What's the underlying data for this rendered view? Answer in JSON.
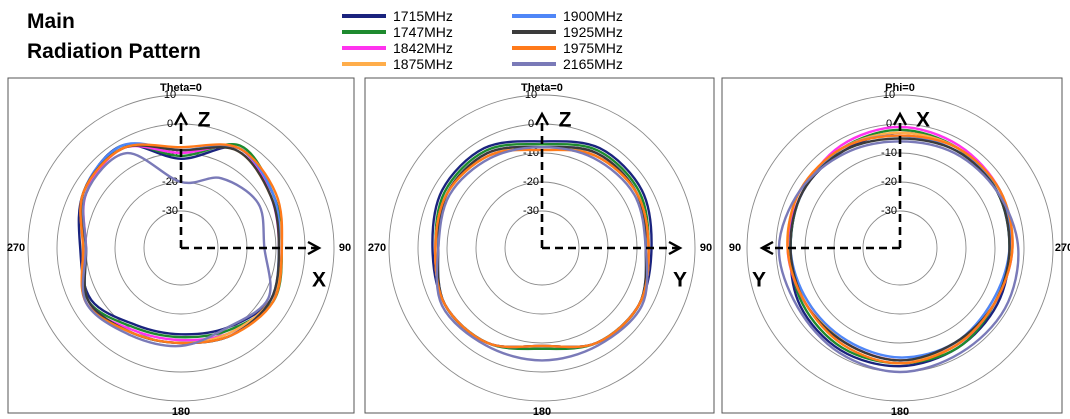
{
  "header": {
    "line1": "Main",
    "line2": "Radiation Pattern"
  },
  "legend": [
    {
      "name": "1715MHz",
      "color": "#1a237e"
    },
    {
      "name": "1747MHz",
      "color": "#1e8a2e"
    },
    {
      "name": "1842MHz",
      "color": "#ff33ee"
    },
    {
      "name": "1875MHz",
      "color": "#ffad4a"
    },
    {
      "name": "1900MHz",
      "color": "#4f86f7"
    },
    {
      "name": "1925MHz",
      "color": "#3b3b3b"
    },
    {
      "name": "1975MHz",
      "color": "#ff7a1a"
    },
    {
      "name": "2165MHz",
      "color": "#7a7ab8"
    }
  ],
  "chart_data": [
    {
      "type": "polar",
      "plane": "Theta=0",
      "angle_labels": {
        "top": "0",
        "right": "90",
        "bottom": "180",
        "left": "270"
      },
      "rlim": [
        -30,
        10
      ],
      "ring_labels": [
        "10",
        "0",
        "-10",
        "-20",
        "-30"
      ],
      "axes": {
        "up": "Z",
        "horizontal": "X",
        "horizontal_direction": "right"
      },
      "series": [
        {
          "name": "1715MHz",
          "theta": [
            0,
            30,
            60,
            90,
            120,
            150,
            180,
            210,
            240,
            270,
            300,
            330,
            360
          ],
          "r": [
            -12,
            -3,
            -6,
            -8,
            -7,
            -11,
            -13,
            -12,
            -7,
            -8,
            -4,
            -2,
            -12
          ]
        },
        {
          "name": "1747MHz",
          "theta": [
            0,
            30,
            60,
            90,
            120,
            150,
            180,
            210,
            240,
            270,
            300,
            330,
            360
          ],
          "r": [
            -11,
            -2,
            -6,
            -8,
            -6,
            -10,
            -12,
            -11,
            -6,
            -9,
            -5,
            -2,
            -11
          ]
        },
        {
          "name": "1842MHz",
          "theta": [
            0,
            30,
            60,
            90,
            120,
            150,
            180,
            210,
            240,
            270,
            300,
            330,
            360
          ],
          "r": [
            -10,
            -3,
            -7,
            -9,
            -7,
            -9,
            -11,
            -10,
            -5,
            -10,
            -5,
            -3,
            -10
          ]
        },
        {
          "name": "1875MHz",
          "theta": [
            0,
            30,
            60,
            90,
            120,
            150,
            180,
            210,
            240,
            270,
            300,
            330,
            360
          ],
          "r": [
            -9,
            -4,
            -7,
            -8,
            -7,
            -9,
            -10,
            -9,
            -5,
            -9,
            -4,
            -3,
            -9
          ]
        },
        {
          "name": "1900MHz",
          "theta": [
            0,
            30,
            60,
            90,
            120,
            150,
            180,
            210,
            240,
            270,
            300,
            330,
            360
          ],
          "r": [
            -9,
            -3,
            -6,
            -9,
            -7,
            -8,
            -10,
            -9,
            -6,
            -10,
            -4,
            -2,
            -9
          ]
        },
        {
          "name": "1925MHz",
          "theta": [
            0,
            30,
            60,
            90,
            120,
            150,
            180,
            210,
            240,
            270,
            300,
            330,
            360
          ],
          "r": [
            -9,
            -4,
            -7,
            -9,
            -7,
            -8,
            -10,
            -9,
            -6,
            -10,
            -4,
            -3,
            -9
          ]
        },
        {
          "name": "1975MHz",
          "theta": [
            0,
            30,
            60,
            90,
            120,
            150,
            180,
            210,
            240,
            270,
            300,
            330,
            360
          ],
          "r": [
            -8,
            -3,
            -5,
            -8,
            -6,
            -8,
            -10,
            -9,
            -5,
            -9,
            -4,
            -3,
            -8
          ]
        },
        {
          "name": "2165MHz",
          "theta": [
            0,
            30,
            60,
            90,
            120,
            150,
            180,
            210,
            240,
            270,
            300,
            330,
            360
          ],
          "r": [
            -20,
            -15,
            -12,
            -14,
            -8,
            -11,
            -9,
            -8,
            -5,
            -10,
            -5,
            -5,
            -20
          ]
        }
      ]
    },
    {
      "type": "polar",
      "plane": "Theta=0",
      "angle_labels": {
        "top": "0",
        "right": "90",
        "bottom": "180",
        "left": "270"
      },
      "rlim": [
        -30,
        10
      ],
      "ring_labels": [
        "10",
        "0",
        "-10",
        "-20",
        "-30"
      ],
      "axes": {
        "up": "Z",
        "horizontal": "Y",
        "horizontal_direction": "right"
      },
      "series": [
        {
          "name": "1715MHz",
          "theta": [
            0,
            30,
            60,
            90,
            120,
            150,
            180,
            210,
            240,
            270,
            300,
            330,
            360
          ],
          "r": [
            -6,
            -3,
            -3,
            -5,
            -4,
            -5,
            -9,
            -5,
            -4,
            -5,
            -3,
            -3,
            -6
          ]
        },
        {
          "name": "1747MHz",
          "theta": [
            0,
            30,
            60,
            90,
            120,
            150,
            180,
            210,
            240,
            270,
            300,
            330,
            360
          ],
          "r": [
            -7,
            -4,
            -4,
            -6,
            -4,
            -5,
            -8,
            -5,
            -4,
            -6,
            -4,
            -4,
            -7
          ]
        },
        {
          "name": "1842MHz",
          "theta": [
            0,
            30,
            60,
            90,
            120,
            150,
            180,
            210,
            240,
            270,
            300,
            330,
            360
          ],
          "r": [
            -8,
            -5,
            -5,
            -6,
            -4,
            -5,
            -9,
            -5,
            -4,
            -6,
            -5,
            -5,
            -8
          ]
        },
        {
          "name": "1875MHz",
          "theta": [
            0,
            30,
            60,
            90,
            120,
            150,
            180,
            210,
            240,
            270,
            300,
            330,
            360
          ],
          "r": [
            -8,
            -6,
            -5,
            -6,
            -4,
            -5,
            -9,
            -5,
            -4,
            -6,
            -5,
            -6,
            -8
          ]
        },
        {
          "name": "1900MHz",
          "theta": [
            0,
            30,
            60,
            90,
            120,
            150,
            180,
            210,
            240,
            270,
            300,
            330,
            360
          ],
          "r": [
            -8,
            -5,
            -5,
            -7,
            -4,
            -5,
            -9,
            -5,
            -4,
            -7,
            -5,
            -5,
            -8
          ]
        },
        {
          "name": "1925MHz",
          "theta": [
            0,
            30,
            60,
            90,
            120,
            150,
            180,
            210,
            240,
            270,
            300,
            330,
            360
          ],
          "r": [
            -8,
            -5,
            -5,
            -7,
            -4,
            -5,
            -9,
            -5,
            -4,
            -7,
            -5,
            -5,
            -8
          ]
        },
        {
          "name": "1975MHz",
          "theta": [
            0,
            30,
            60,
            90,
            120,
            150,
            180,
            210,
            240,
            270,
            300,
            330,
            360
          ],
          "r": [
            -9,
            -6,
            -5,
            -6,
            -4,
            -5,
            -9,
            -5,
            -4,
            -6,
            -5,
            -6,
            -9
          ]
        },
        {
          "name": "2165MHz",
          "theta": [
            0,
            30,
            60,
            90,
            120,
            150,
            180,
            210,
            240,
            270,
            300,
            330,
            360
          ],
          "r": [
            -8,
            -7,
            -6,
            -7,
            -3,
            -4,
            -4,
            -4,
            -3,
            -7,
            -6,
            -7,
            -8
          ]
        }
      ]
    },
    {
      "type": "polar",
      "plane": "Phi=0",
      "angle_labels": {
        "top": "",
        "right": "270",
        "bottom": "180",
        "left": "90"
      },
      "rlim": [
        -30,
        10
      ],
      "ring_labels": [
        "10",
        "0",
        "-10",
        "-20",
        "-30"
      ],
      "axes": {
        "up": "X",
        "horizontal": "Y",
        "horizontal_direction": "left"
      },
      "series": [
        {
          "name": "1715MHz",
          "theta": [
            0,
            30,
            60,
            90,
            120,
            150,
            180,
            210,
            240,
            270,
            300,
            330,
            360
          ],
          "r": [
            -3,
            -4,
            -4,
            -5,
            -3,
            -2,
            -2,
            -3,
            -4,
            -5,
            -4,
            -3,
            -3
          ]
        },
        {
          "name": "1747MHz",
          "theta": [
            0,
            30,
            60,
            90,
            120,
            150,
            180,
            210,
            240,
            270,
            300,
            330,
            360
          ],
          "r": [
            -2,
            -3,
            -4,
            -5,
            -4,
            -3,
            -3,
            -3,
            -5,
            -5,
            -4,
            -3,
            -2
          ]
        },
        {
          "name": "1842MHz",
          "theta": [
            0,
            30,
            60,
            90,
            120,
            150,
            180,
            210,
            240,
            270,
            300,
            330,
            360
          ],
          "r": [
            -1,
            -2,
            -4,
            -4,
            -5,
            -5,
            -4,
            -4,
            -5,
            -4,
            -3,
            -2,
            -1
          ]
        },
        {
          "name": "1875MHz",
          "theta": [
            0,
            30,
            60,
            90,
            120,
            150,
            180,
            210,
            240,
            270,
            300,
            330,
            360
          ],
          "r": [
            -3,
            -3,
            -3,
            -4,
            -6,
            -5,
            -4,
            -4,
            -6,
            -4,
            -3,
            -3,
            -3
          ]
        },
        {
          "name": "1900MHz",
          "theta": [
            0,
            30,
            60,
            90,
            120,
            150,
            180,
            210,
            240,
            270,
            300,
            330,
            360
          ],
          "r": [
            -4,
            -3,
            -4,
            -5,
            -6,
            -6,
            -5,
            -5,
            -6,
            -5,
            -3,
            -4,
            -4
          ]
        },
        {
          "name": "1925MHz",
          "theta": [
            0,
            30,
            60,
            90,
            120,
            150,
            180,
            210,
            240,
            270,
            300,
            330,
            360
          ],
          "r": [
            -5,
            -4,
            -4,
            -5,
            -5,
            -5,
            -4,
            -5,
            -5,
            -5,
            -4,
            -4,
            -5
          ]
        },
        {
          "name": "1975MHz",
          "theta": [
            0,
            30,
            60,
            90,
            120,
            150,
            180,
            210,
            240,
            270,
            300,
            330,
            360
          ],
          "r": [
            -4,
            -3,
            -3,
            -4,
            -5,
            -4,
            -3,
            -4,
            -5,
            -4,
            -3,
            -3,
            -4
          ]
        },
        {
          "name": "2165MHz",
          "theta": [
            0,
            30,
            60,
            90,
            120,
            150,
            180,
            210,
            240,
            270,
            300,
            330,
            360
          ],
          "r": [
            -6,
            -5,
            -3,
            -1,
            -2,
            -1,
            0,
            -1,
            -1,
            -2,
            -4,
            -5,
            -6
          ]
        }
      ]
    }
  ]
}
